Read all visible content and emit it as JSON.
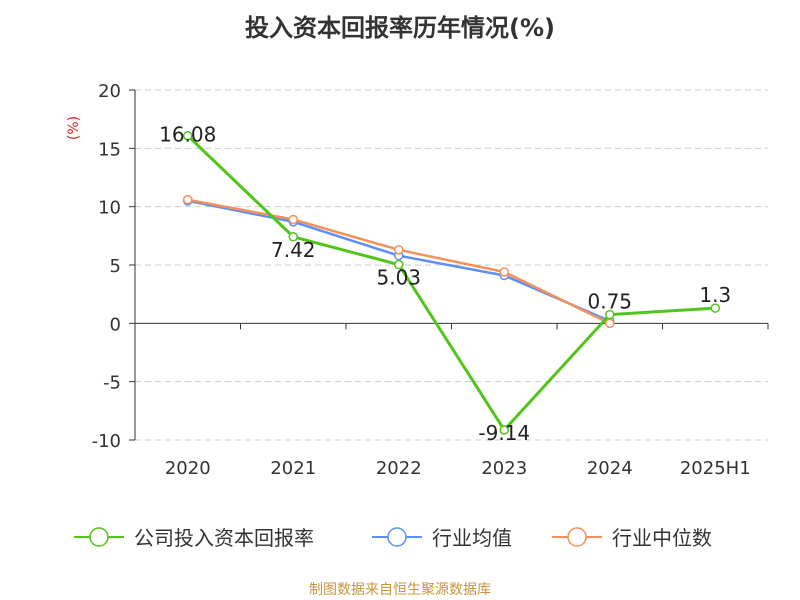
{
  "chart_data": {
    "type": "line",
    "title": "投入资本回报率历年情况(%)",
    "ylabel": "(%)",
    "categories": [
      "2020",
      "2021",
      "2022",
      "2023",
      "2024",
      "2025H1"
    ],
    "ylim": [
      -10,
      20
    ],
    "yticks": [
      20,
      15,
      10,
      5,
      0,
      -5,
      -10
    ],
    "grid": true,
    "legend_position": "bottom",
    "series": [
      {
        "name": "公司投入资本回报率",
        "color": "#52c41a",
        "values": [
          16.08,
          7.42,
          5.03,
          -9.14,
          0.75,
          1.3
        ],
        "labels": [
          "16.08",
          "7.42",
          "5.03",
          "-9.14",
          "0.75",
          "1.3"
        ]
      },
      {
        "name": "行业均值",
        "color": "#5b8ff9",
        "values": [
          10.5,
          8.7,
          5.8,
          4.1,
          0.2,
          null
        ]
      },
      {
        "name": "行业中位数",
        "color": "#f6905a",
        "values": [
          10.6,
          8.9,
          6.3,
          4.4,
          0.0,
          null
        ]
      }
    ]
  },
  "source": {
    "text": "制图数据来自恒生聚源数据库",
    "color": "#c8963c"
  },
  "colors": {
    "ylabel": "#e02020",
    "axis": "#333333",
    "grid": "#cccccc",
    "text": "#333333"
  }
}
